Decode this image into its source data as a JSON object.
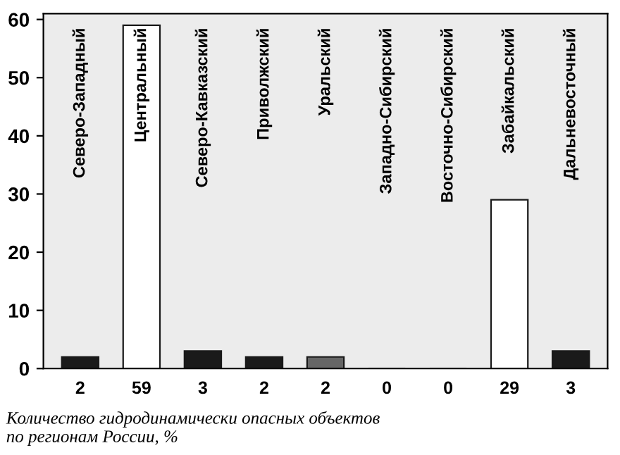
{
  "chart_data": {
    "type": "bar",
    "title": "Количество гидродинамически опасных объектов\nпо регионам России, %",
    "categories": [
      "Северо-Западный",
      "Центральный",
      "Северо-Кавказский",
      "Приволжский",
      "Уральский",
      "Западно-Сибирский",
      "Восточно-Сибирский",
      "Забайкальский",
      "Дальневосточный"
    ],
    "values": [
      2,
      59,
      3,
      2,
      2,
      0,
      0,
      29,
      3
    ],
    "colors": [
      "#1a1a1a",
      "#ffffff",
      "#1a1a1a",
      "#1a1a1a",
      "#666666",
      "#1a1a1a",
      "#1a1a1a",
      "#ffffff",
      "#1a1a1a"
    ],
    "ylim": [
      0,
      61
    ],
    "yticks": [
      0,
      10,
      20,
      30,
      40,
      50,
      60
    ],
    "data_labels": true,
    "grid": false,
    "legend": false
  }
}
